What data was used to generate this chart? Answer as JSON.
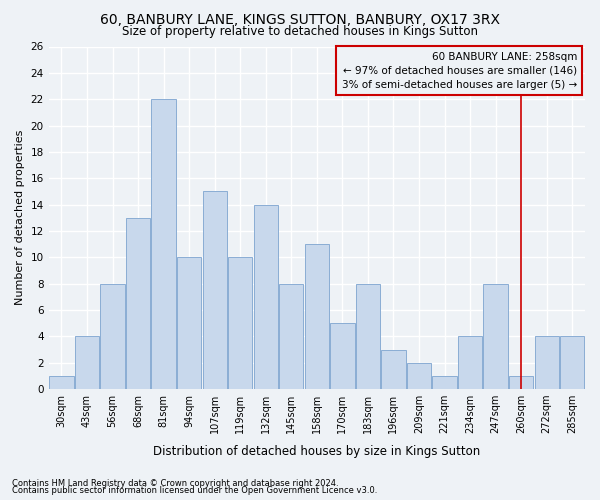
{
  "title_line1": "60, BANBURY LANE, KINGS SUTTON, BANBURY, OX17 3RX",
  "title_line2": "Size of property relative to detached houses in Kings Sutton",
  "xlabel": "Distribution of detached houses by size in Kings Sutton",
  "ylabel": "Number of detached properties",
  "categories": [
    "30sqm",
    "43sqm",
    "56sqm",
    "68sqm",
    "81sqm",
    "94sqm",
    "107sqm",
    "119sqm",
    "132sqm",
    "145sqm",
    "158sqm",
    "170sqm",
    "183sqm",
    "196sqm",
    "209sqm",
    "221sqm",
    "234sqm",
    "247sqm",
    "260sqm",
    "272sqm",
    "285sqm"
  ],
  "values": [
    1,
    4,
    8,
    13,
    22,
    10,
    15,
    10,
    14,
    8,
    11,
    5,
    8,
    3,
    2,
    1,
    4,
    8,
    1,
    4,
    4
  ],
  "bar_color": "#c8d8ec",
  "bar_edge_color": "#8aadd4",
  "vline_x_index": 18,
  "vline_color": "#cc0000",
  "annotation_line1": "60 BANBURY LANE: 258sqm",
  "annotation_line2": "← 97% of detached houses are smaller (146)",
  "annotation_line3": "3% of semi-detached houses are larger (5) →",
  "ylim": [
    0,
    26
  ],
  "yticks": [
    0,
    2,
    4,
    6,
    8,
    10,
    12,
    14,
    16,
    18,
    20,
    22,
    24,
    26
  ],
  "footnote1": "Contains HM Land Registry data © Crown copyright and database right 2024.",
  "footnote2": "Contains public sector information licensed under the Open Government Licence v3.0.",
  "bg_color": "#eef2f6",
  "grid_color": "#ffffff"
}
